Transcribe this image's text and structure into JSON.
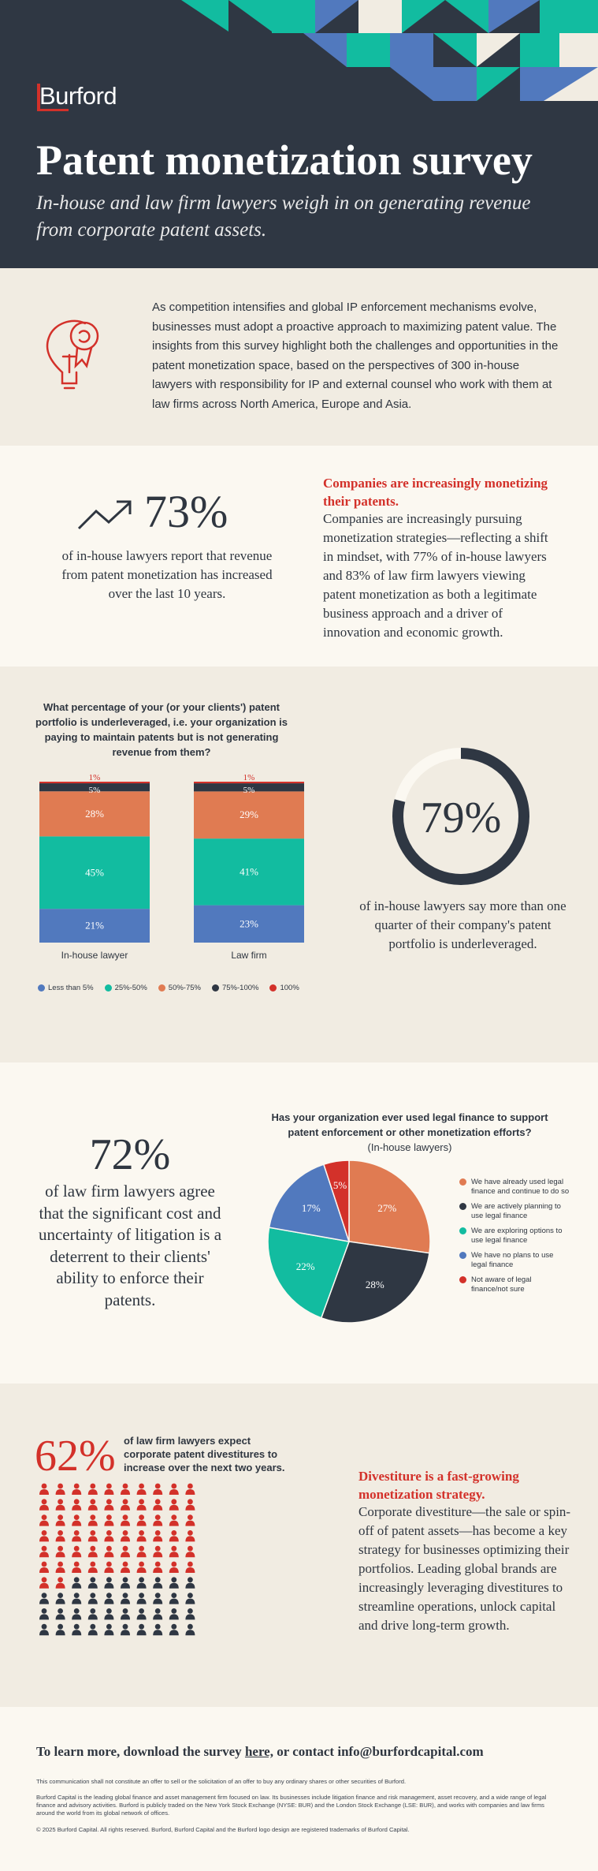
{
  "header": {
    "logo_text": "Burford",
    "title": "Patent monetization survey",
    "subtitle": "In-house and law firm lawyers weigh in on generating revenue from corporate patent assets."
  },
  "intro": {
    "icon": "lightbulb-ribbon-icon",
    "text": "As competition intensifies and global IP enforcement mechanisms evolve, businesses must adopt a proactive approach to maximizing patent value. The insights from this survey highlight both the challenges and opportunities in the patent monetization space, based on the perspectives of 300 in-house lawyers with responsibility for IP and external counsel who work with them at law firms across North America, Europe and Asia."
  },
  "growth": {
    "icon": "trending-up-arrow-icon",
    "stat": "73%",
    "desc": "of in-house lawyers report that revenue from patent monetization has increased over the last 10 years.",
    "heading": "Companies are increasingly monetizing their patents.",
    "body": "Companies are increasingly pursuing monetization strategies—reflecting a shift in mindset, with 77% of in-house lawyers and 83% of law firm lawyers viewing patent monetization as both a legitimate business approach and a driver of innovation and economic growth."
  },
  "under": {
    "question": "What percentage of your (or your clients') patent portfolio is underleveraged, i.e. your organization is paying to maintain patents but is not generating revenue from them?",
    "stat": "79%",
    "stat_fraction": 0.79,
    "desc": "of in-house lawyers say more than one quarter of their company's patent portfolio is underleveraged."
  },
  "chart_data": [
    {
      "type": "bar",
      "stacked": true,
      "categories": [
        "In-house lawyer",
        "Law firm"
      ],
      "series": [
        {
          "name": "Less than 5%",
          "values": [
            21,
            23
          ],
          "labels": [
            "21%",
            "23%"
          ],
          "color": "#5179be"
        },
        {
          "name": "25%-50%",
          "values": [
            45,
            41
          ],
          "labels": [
            "45%",
            "41%"
          ],
          "color": "#12bca0"
        },
        {
          "name": "50%-75%",
          "values": [
            28,
            29
          ],
          "labels": [
            "28%",
            "29%"
          ],
          "color": "#e07b52"
        },
        {
          "name": "75%-100%",
          "values": [
            5,
            5
          ],
          "labels": [
            "5%",
            "5%"
          ],
          "color": "#2f3743"
        },
        {
          "name": "100%",
          "values": [
            1,
            1
          ],
          "labels": [
            "1%",
            "1%"
          ],
          "color": "#d3312a"
        }
      ],
      "title": "What percentage of your (or your clients') patent portfolio is underleveraged, i.e. your organization is paying to maintain patents but is not generating revenue from them?",
      "legend": "bottom"
    },
    {
      "type": "pie",
      "title": "Has your organization ever used legal finance to support patent enforcement or other monetization efforts?",
      "subtitle": "(In-house lawyers)",
      "slices": [
        {
          "name": "We have already used legal finance and continue to do so",
          "value": 27,
          "label": "27%",
          "color": "#e07b52"
        },
        {
          "name": "We are actively planning to use legal finance",
          "value": 28,
          "label": "28%",
          "color": "#2f3743"
        },
        {
          "name": "We are exploring options to use legal finance",
          "value": 22,
          "label": "22%",
          "color": "#12bca0"
        },
        {
          "name": "We have no plans to use legal finance",
          "value": 17,
          "label": "17%",
          "color": "#5179be"
        },
        {
          "name": "Not aware of legal finance/not sure",
          "value": 5,
          "label": "5%",
          "color": "#d3312a"
        }
      ],
      "legend": "right"
    }
  ],
  "finance": {
    "stat": "72%",
    "desc": "of law firm lawyers agree that the significant cost and uncertainty of litigation is a deterrent to their clients' ability to enforce their patents.",
    "question": "Has your organization ever used legal finance to support patent enforcement or other monetization efforts?",
    "question_sub": "(In-house lawyers)"
  },
  "divest": {
    "stat": "62%",
    "stat_value": 62,
    "stat_text": "of law firm lawyers expect corporate patent divestitures to increase over the next two years.",
    "people_icon": "person-icon",
    "heading": "Divestiture is a fast-growing monetization strategy.",
    "body": "Corporate divestiture—the sale or spin-off of patent assets—has become a key strategy for businesses optimizing their portfolios. Leading global brands are increasingly leveraging divestitures to streamline operations, unlock capital and drive long-term growth.",
    "colors": {
      "highlight": "#d3312a",
      "rest": "#2f3743"
    }
  },
  "footer": {
    "cta_pre": "To learn more, download the survey ",
    "cta_link": "here,",
    "cta_post": " or contact info@burfordcapital.com",
    "disclaimer": "This communication shall not constitute an offer to sell or the solicitation of an offer to buy any ordinary shares or other securities of Burford.",
    "about": "Burford Capital is the leading global finance and asset management firm focused on law. Its businesses include litigation finance and risk management, asset recovery, and a wide range of legal finance and advisory activities. Burford is publicly traded on the New York Stock Exchange (NYSE: BUR) and the London Stock Exchange (LSE: BUR), and works with companies and law firms around the world from its global network of offices.",
    "copyright": "© 2025 Burford Capital. All rights reserved. Burford, Burford Capital and the Burford logo design are registered trademarks of Burford Capital."
  },
  "colors": {
    "navy": "#2f3743",
    "red": "#d3312a",
    "teal": "#12bca0",
    "blue": "#5179be",
    "orange": "#e07b52",
    "cream": "#fbf8f1"
  }
}
